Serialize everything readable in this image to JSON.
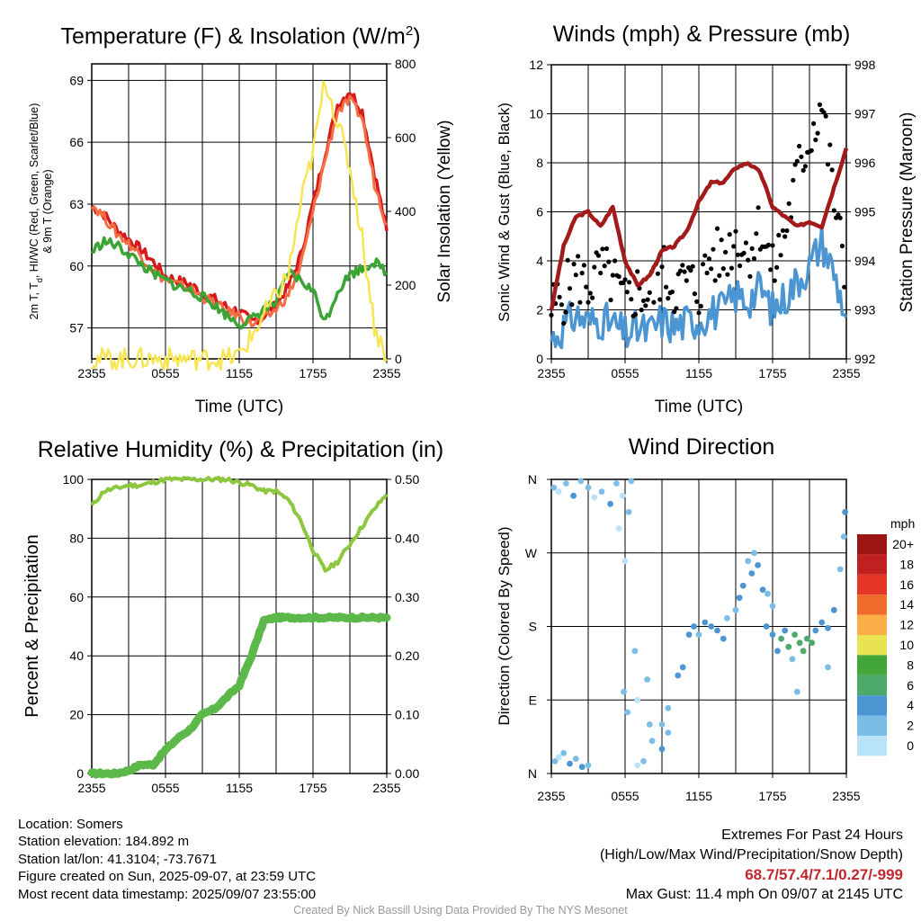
{
  "panels": {
    "temperature": {
      "title": "Temperature (F) & Insolation (W/m",
      "title_sup": "2",
      "title_close": ")",
      "ylabel_left_line1": "2m T, T",
      "ylabel_left_sub": "d",
      "ylabel_left_line1_rest": ", HI/WC (Red, Green, Scarlet/Blue)",
      "ylabel_left_line2": "& 9m T (Orange)",
      "ylabel_right": "Solar Insolation (Yellow)",
      "xlabel": "Time (UTC)"
    },
    "winds": {
      "title": "Winds (mph) & Pressure (mb)",
      "ylabel_left": "Sonic Wind & Gust (Blue, Black)",
      "ylabel_right": "Station Pressure (Maroon)",
      "xlabel": "Time (UTC)"
    },
    "humidity": {
      "title": "Relative Humidity (%) & Precipitation (in)",
      "ylabel_left": "Percent & Precipitation"
    },
    "direction": {
      "title": "Wind Direction",
      "ylabel_left": "Direction (Colored By Speed)",
      "colorbar_units": "mph"
    }
  },
  "footer": {
    "location": "Location: Somers",
    "elevation": "Station elevation: 184.892 m",
    "latlon": "Station lat/lon: 41.3104; -73.7671",
    "created": "Figure created on Sun, 2025-09-07, at 23:59 UTC",
    "recent": "Most recent data timestamp: 2025/09/07 23:55:00",
    "extremes_title": "Extremes For Past 24 Hours",
    "extremes_desc": "(High/Low/Max Wind/Precipitation/Snow Depth)",
    "extremes_values": "68.7/57.4/7.1/0.27/-999",
    "max_gust": "Max Gust: 11.4 mph On 09/07 at 2145 UTC",
    "credit": "Created By Nick Bassill Using Data Provided By The NYS Mesonet"
  },
  "chart_data": [
    {
      "type": "line",
      "x_ticks": [
        "2355",
        "0555",
        "1155",
        "1755",
        "2355"
      ],
      "x": [
        0,
        1,
        2,
        3,
        4,
        5,
        6,
        7,
        8,
        9,
        10,
        11,
        12,
        13,
        14,
        15,
        16,
        17,
        18,
        19,
        20,
        21,
        22,
        23,
        24
      ],
      "y_left_range": [
        55.5,
        69.8
      ],
      "y_left_ticks": [
        "57",
        "60",
        "63",
        "66",
        "69"
      ],
      "y_right_range": [
        0,
        800
      ],
      "y_right_ticks": [
        "0",
        "200",
        "400",
        "600",
        "800"
      ],
      "series": [
        {
          "color": "#d7191c",
          "axis": "left",
          "width": 3.5,
          "values": [
            62.9,
            62.5,
            61.8,
            61.3,
            60.8,
            60.2,
            59.5,
            59.3,
            59.1,
            58.7,
            58.4,
            58.0,
            57.8,
            57.3,
            57.6,
            58.1,
            59.0,
            60.5,
            63.0,
            65.5,
            67.8,
            68.5,
            67.5,
            64.5,
            61.7
          ]
        },
        {
          "color": "#f46d43",
          "axis": "left",
          "width": 3,
          "values": [
            63.0,
            62.4,
            61.6,
            61.1,
            60.5,
            59.8,
            59.3,
            59.1,
            58.9,
            58.5,
            58.2,
            57.8,
            57.6,
            57.2,
            57.4,
            57.9,
            58.6,
            60.0,
            62.6,
            65.2,
            67.5,
            68.0,
            67.2,
            64.0,
            62.0
          ]
        },
        {
          "color": "#3aa535",
          "axis": "left",
          "width": 3.5,
          "values": [
            60.7,
            61.2,
            61.0,
            60.6,
            60.1,
            59.6,
            59.3,
            59.0,
            58.8,
            58.5,
            58.1,
            57.6,
            57.2,
            57.4,
            57.9,
            58.2,
            59.7,
            59.3,
            58.8,
            57.3,
            58.8,
            59.6,
            59.9,
            60.2,
            59.7
          ]
        },
        {
          "color": "#f7e553",
          "axis": "right",
          "width": 2.5,
          "values": [
            0,
            0,
            0,
            0,
            0,
            0,
            0,
            0,
            0,
            0,
            0,
            0,
            10,
            60,
            120,
            170,
            230,
            420,
            560,
            760,
            640,
            520,
            330,
            90,
            0
          ]
        }
      ]
    },
    {
      "type": "line",
      "x_ticks": [
        "2355",
        "0555",
        "1155",
        "1755",
        "2355"
      ],
      "x": [
        0,
        1,
        2,
        3,
        4,
        5,
        6,
        7,
        8,
        9,
        10,
        11,
        12,
        13,
        14,
        15,
        16,
        17,
        18,
        19,
        20,
        21,
        22,
        23,
        24
      ],
      "y_left_range": [
        0,
        12
      ],
      "y_left_ticks": [
        "0",
        "2",
        "4",
        "6",
        "8",
        "10",
        "12"
      ],
      "y_right_range": [
        992,
        998
      ],
      "y_right_ticks": [
        "992",
        "993",
        "994",
        "995",
        "996",
        "997",
        "998"
      ],
      "series": [
        {
          "name": "gust",
          "color": "#000000",
          "axis": "left",
          "style": "dots",
          "values": [
            2.0,
            2.6,
            3.4,
            3.0,
            3.6,
            3.2,
            2.2,
            2.8,
            2.5,
            3.6,
            2.9,
            3.2,
            2.8,
            4.2,
            4.1,
            5.0,
            4.3,
            5.5,
            3.5,
            5.2,
            7.5,
            9.0,
            10.5,
            6.5,
            3.0
          ]
        },
        {
          "name": "wind",
          "color": "#4a95d2",
          "axis": "left",
          "width": 3.5,
          "values": [
            0.8,
            1.3,
            1.8,
            1.5,
            1.6,
            1.4,
            1.0,
            1.2,
            1.1,
            1.6,
            1.3,
            1.5,
            1.6,
            1.9,
            2.0,
            2.6,
            2.4,
            2.9,
            2.0,
            2.5,
            3.2,
            3.8,
            4.8,
            3.5,
            1.7
          ]
        },
        {
          "name": "pressure",
          "color": "#a21a1a",
          "axis": "right",
          "width": 4.5,
          "values": [
            993.0,
            994.3,
            994.9,
            995.0,
            994.7,
            995.1,
            994.0,
            993.5,
            993.7,
            994.2,
            994.3,
            994.6,
            995.2,
            995.6,
            995.6,
            995.9,
            996.0,
            995.8,
            995.1,
            994.9,
            994.7,
            994.8,
            994.7,
            995.5,
            996.3
          ]
        }
      ]
    },
    {
      "type": "line",
      "x_ticks": [
        "2355",
        "0555",
        "1155",
        "1755",
        "2355"
      ],
      "x": [
        0,
        1,
        2,
        3,
        4,
        5,
        6,
        7,
        8,
        9,
        10,
        11,
        12,
        13,
        14,
        15,
        16,
        17,
        18,
        19,
        20,
        21,
        22,
        23,
        24
      ],
      "y_left_range": [
        0,
        100
      ],
      "y_left_ticks": [
        "0",
        "20",
        "40",
        "60",
        "80",
        "100"
      ],
      "y_right_range": [
        0,
        0.5
      ],
      "y_right_ticks": [
        "0.00",
        "0.10",
        "0.20",
        "0.30",
        "0.40",
        "0.50"
      ],
      "series": [
        {
          "name": "rh",
          "color": "#8dc63f",
          "axis": "left",
          "width": 4,
          "values": [
            91,
            96,
            97,
            98,
            98,
            99,
            100,
            100,
            100,
            100,
            100,
            100,
            99,
            98,
            96,
            96,
            93,
            86,
            76,
            69,
            72,
            78,
            84,
            90,
            95
          ]
        },
        {
          "name": "precip",
          "color": "#5cb848",
          "axis": "right",
          "width": 9,
          "values": [
            0.0,
            0.0,
            0.0,
            0.005,
            0.015,
            0.015,
            0.04,
            0.06,
            0.075,
            0.1,
            0.11,
            0.13,
            0.15,
            0.2,
            0.26,
            0.265,
            0.265,
            0.265,
            0.265,
            0.265,
            0.265,
            0.265,
            0.265,
            0.265,
            0.265
          ]
        }
      ]
    },
    {
      "type": "scatter",
      "x_ticks": [
        "2355",
        "0555",
        "1155",
        "1755",
        "2355"
      ],
      "y_ticks": [
        "N",
        "E",
        "S",
        "W",
        "N"
      ],
      "y_range": [
        0,
        360
      ],
      "colorbar": {
        "labels": [
          "0",
          "2",
          "4",
          "6",
          "8",
          "10",
          "12",
          "14",
          "16",
          "18",
          "20+"
        ],
        "colors": [
          "#b9e3f8",
          "#7cbde8",
          "#4a95d2",
          "#4daa6a",
          "#42a638",
          "#e9e251",
          "#fbae48",
          "#f06a2a",
          "#e43526",
          "#c0201f",
          "#9b1515"
        ]
      },
      "points": [
        [
          0.3,
          15,
          1
        ],
        [
          0.6,
          20,
          0
        ],
        [
          1.0,
          25,
          1
        ],
        [
          1.5,
          12,
          2
        ],
        [
          2.0,
          18,
          1
        ],
        [
          2.5,
          8,
          2
        ],
        [
          3.0,
          10,
          1
        ],
        [
          0.2,
          350,
          1
        ],
        [
          0.6,
          345,
          0
        ],
        [
          1.2,
          355,
          1
        ],
        [
          1.8,
          340,
          2
        ],
        [
          2.4,
          358,
          1
        ],
        [
          3.0,
          350,
          1
        ],
        [
          3.5,
          338,
          0
        ],
        [
          4.1,
          345,
          1
        ],
        [
          4.8,
          330,
          2
        ],
        [
          5.3,
          355,
          1
        ],
        [
          5.8,
          340,
          0
        ],
        [
          6.3,
          320,
          1
        ],
        [
          5.5,
          300,
          0
        ],
        [
          6.5,
          358,
          1
        ],
        [
          7.0,
          10,
          0
        ],
        [
          7.5,
          15,
          1
        ],
        [
          7.0,
          90,
          0
        ],
        [
          8.0,
          60,
          1
        ],
        [
          8.2,
          40,
          1
        ],
        [
          9.0,
          30,
          2
        ],
        [
          9.5,
          50,
          1
        ],
        [
          6.0,
          260,
          0
        ],
        [
          6.8,
          150,
          1
        ],
        [
          5.9,
          100,
          1
        ],
        [
          6.2,
          75,
          1
        ],
        [
          7.8,
          115,
          1
        ],
        [
          9.0,
          60,
          1
        ],
        [
          9.5,
          80,
          1
        ],
        [
          10.3,
          120,
          2
        ],
        [
          10.7,
          130,
          2
        ],
        [
          11.2,
          170,
          2
        ],
        [
          11.6,
          180,
          2
        ],
        [
          12.0,
          170,
          1
        ],
        [
          12.5,
          185,
          2
        ],
        [
          13.0,
          180,
          2
        ],
        [
          13.5,
          175,
          2
        ],
        [
          14.0,
          165,
          2
        ],
        [
          14.3,
          190,
          1
        ],
        [
          15.0,
          200,
          1
        ],
        [
          15.3,
          215,
          2
        ],
        [
          15.6,
          230,
          2
        ],
        [
          16.0,
          260,
          1
        ],
        [
          16.3,
          245,
          2
        ],
        [
          16.5,
          270,
          1
        ],
        [
          16.8,
          255,
          2
        ],
        [
          17.2,
          225,
          2
        ],
        [
          17.6,
          220,
          1
        ],
        [
          18.0,
          205,
          1
        ],
        [
          17.5,
          180,
          2
        ],
        [
          18.0,
          170,
          2
        ],
        [
          18.4,
          150,
          2
        ],
        [
          18.7,
          165,
          3
        ],
        [
          19.0,
          175,
          2
        ],
        [
          19.3,
          155,
          3
        ],
        [
          19.6,
          140,
          1
        ],
        [
          19.8,
          170,
          3
        ],
        [
          20.2,
          160,
          3
        ],
        [
          20.5,
          150,
          3
        ],
        [
          20.8,
          165,
          3
        ],
        [
          21.2,
          160,
          3
        ],
        [
          21.5,
          175,
          2
        ],
        [
          22.0,
          185,
          2
        ],
        [
          22.5,
          178,
          2
        ],
        [
          23.0,
          200,
          2
        ],
        [
          23.5,
          250,
          1
        ],
        [
          23.8,
          290,
          1
        ],
        [
          23.9,
          320,
          2
        ],
        [
          20.0,
          100,
          1
        ],
        [
          22.5,
          130,
          1
        ]
      ]
    }
  ]
}
